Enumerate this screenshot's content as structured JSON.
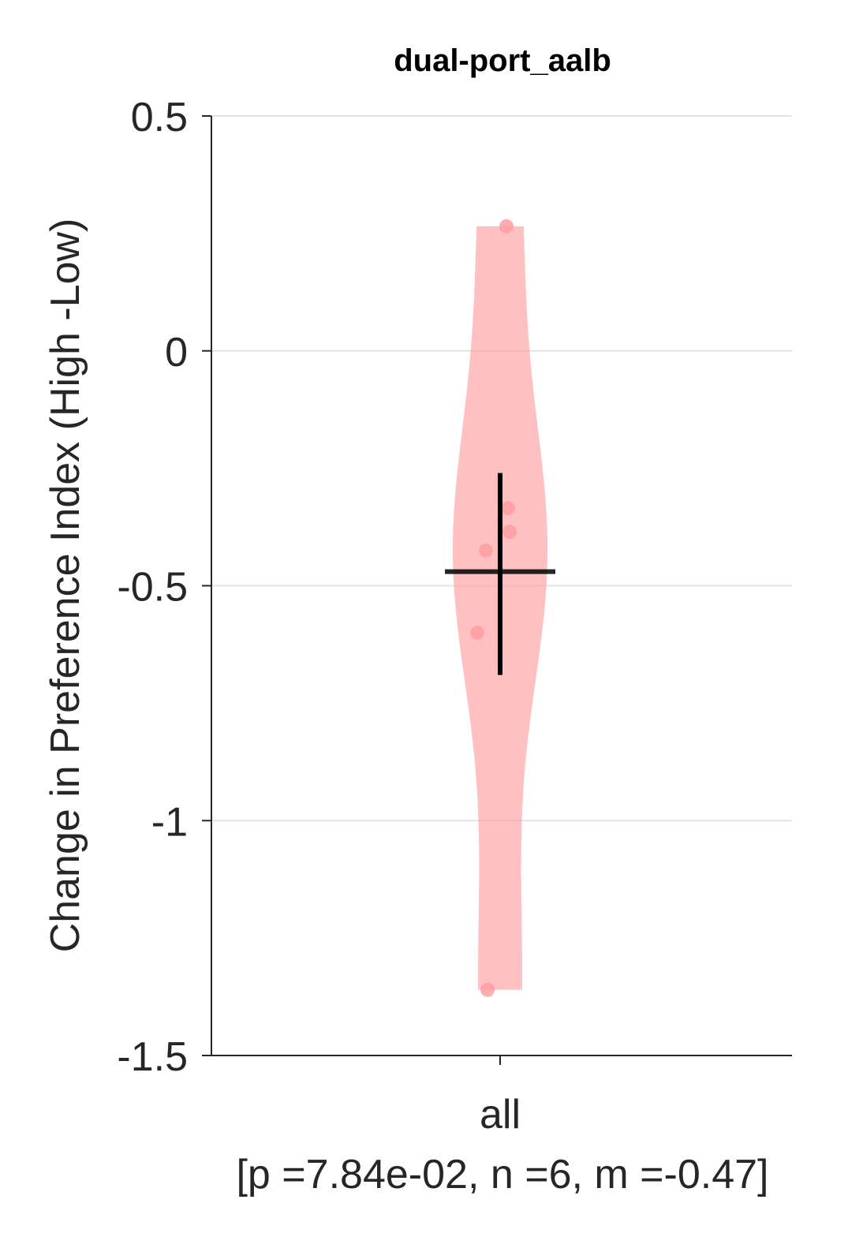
{
  "chart_data": {
    "type": "violin",
    "title": "dual-port_aalb",
    "ylabel": "Change in Preference Index (High -Low)",
    "ylim": [
      -1.5,
      0.5
    ],
    "yticks": [
      {
        "value": 0.5,
        "label": "0.5"
      },
      {
        "value": 0,
        "label": "0"
      },
      {
        "value": -0.5,
        "label": "-0.5"
      },
      {
        "value": -1,
        "label": "-1"
      },
      {
        "value": -1.5,
        "label": "-1.5"
      }
    ],
    "grid": true,
    "categories": [
      "all"
    ],
    "stats_label": "[p =7.84e-02, n =6, m =-0.47]",
    "series": [
      {
        "category": "all",
        "color": "#ff9ea2",
        "points": [
          0.265,
          -0.335,
          -0.385,
          -0.425,
          -0.6,
          -1.36
        ],
        "mean": -0.47,
        "error_low": -0.69,
        "error_high": -0.26,
        "violin_range": [
          -1.36,
          0.265
        ]
      }
    ]
  }
}
